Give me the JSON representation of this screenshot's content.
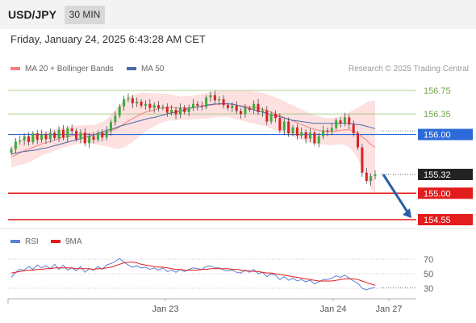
{
  "header": {
    "symbol": "USD/JPY",
    "timeframe": "30 MIN",
    "datetime": "Friday, January 24, 2025 6:43:28 AM CET"
  },
  "legend": {
    "ma20": "MA 20 + Bollinger Bands",
    "ma50": "MA 50",
    "credit": "Research © 2025 Trading Central"
  },
  "rsi_legend": {
    "rsi": "RSI",
    "ma9": "9MA"
  },
  "colors": {
    "up": "#3cab3c",
    "down": "#d92222",
    "ma20": "#f08080",
    "ma50": "#4a6aa8",
    "band": "#fde0e0",
    "support": "#e31c1c",
    "pivot": "#2b6ad8",
    "resist": "#8fc26a",
    "rsi": "#5b7fd6",
    "rsi_ma": "#e31c1c",
    "arrow": "#2a5fa8"
  },
  "chart_data": [
    {
      "type": "candlestick",
      "series_name": "USD/JPY",
      "price_range": [
        154.45,
        156.95
      ],
      "x_labels": [
        "Jan 23",
        "Jan 24",
        "Jan 27"
      ],
      "levels": [
        {
          "value": 156.75,
          "label": "156.75",
          "kind": "resistance"
        },
        {
          "value": 156.35,
          "label": "156.35",
          "kind": "resistance"
        },
        {
          "value": 156.0,
          "label": "156.00",
          "kind": "pivot"
        },
        {
          "value": 155.0,
          "label": "155.00",
          "kind": "support"
        },
        {
          "value": 154.55,
          "label": "154.55",
          "kind": "support"
        }
      ],
      "last_price": {
        "value": 155.32,
        "label": "155.32"
      },
      "forecast_arrow": {
        "from": 155.32,
        "to": 154.55,
        "direction": "down"
      },
      "close": [
        155.75,
        155.88,
        155.9,
        155.97,
        155.87,
        156.02,
        155.91,
        156.0,
        155.92,
        156.03,
        155.94,
        156.08,
        155.95,
        156.1,
        156.06,
        155.92,
        156.03,
        155.85,
        155.97,
        155.91,
        156.03,
        155.95,
        156.06,
        156.21,
        156.32,
        156.48,
        156.6,
        156.62,
        156.53,
        156.56,
        156.49,
        156.52,
        156.45,
        156.5,
        156.45,
        156.47,
        156.37,
        156.42,
        156.34,
        156.46,
        156.38,
        156.45,
        156.52,
        156.49,
        156.47,
        156.63,
        156.67,
        156.58,
        156.6,
        156.5,
        156.45,
        156.49,
        156.4,
        156.35,
        156.45,
        156.42,
        156.52,
        156.38,
        156.41,
        156.22,
        156.35,
        156.28,
        156.07,
        156.22,
        156.02,
        156.12,
        155.98,
        156.04,
        155.93,
        156.03,
        155.85,
        155.97,
        156.07,
        156.05,
        156.11,
        156.24,
        156.19,
        156.29,
        156.17,
        156.02,
        155.78,
        155.35,
        155.21,
        155.29,
        155.32
      ],
      "ma20": [
        155.62,
        155.65,
        155.69,
        155.72,
        155.75,
        155.78,
        155.81,
        155.84,
        155.86,
        155.88,
        155.91,
        155.93,
        155.95,
        155.96,
        155.98,
        155.99,
        156.0,
        156.01,
        156.01,
        156.0,
        156.0,
        156.01,
        156.03,
        156.06,
        156.09,
        156.13,
        156.18,
        156.23,
        156.27,
        156.31,
        156.35,
        156.38,
        156.4,
        156.42,
        156.44,
        156.45,
        156.46,
        156.46,
        156.45,
        156.45,
        156.45,
        156.45,
        156.46,
        156.47,
        156.48,
        156.49,
        156.5,
        156.51,
        156.52,
        156.52,
        156.52,
        156.51,
        156.5,
        156.49,
        156.48,
        156.47,
        156.46,
        156.45,
        156.43,
        156.41,
        156.38,
        156.35,
        156.32,
        156.29,
        156.26,
        156.23,
        156.2,
        156.17,
        156.14,
        156.11,
        156.09,
        156.07,
        156.06,
        156.05,
        156.05,
        156.06,
        156.07,
        156.08,
        156.08,
        156.06,
        156.02,
        155.96,
        155.9,
        155.83,
        155.78
      ],
      "ma50": [
        155.67,
        155.68,
        155.7,
        155.71,
        155.72,
        155.73,
        155.74,
        155.76,
        155.77,
        155.79,
        155.81,
        155.83,
        155.85,
        155.87,
        155.89,
        155.91,
        155.93,
        155.95,
        155.97,
        155.99,
        156.02,
        156.04,
        156.07,
        156.09,
        156.11,
        156.14,
        156.16,
        156.18,
        156.2,
        156.22,
        156.24,
        156.26,
        156.28,
        156.29,
        156.31,
        156.33,
        156.35,
        156.37,
        156.38,
        156.4,
        156.42,
        156.44,
        156.46,
        156.47,
        156.48,
        156.5,
        156.51,
        156.52,
        156.52,
        156.53,
        156.52,
        156.52,
        156.5,
        156.48,
        156.46,
        156.44,
        156.42,
        156.4,
        156.38,
        156.36,
        156.34,
        156.32,
        156.3,
        156.28,
        156.26,
        156.24,
        156.23,
        156.22,
        156.21,
        156.2,
        156.19,
        156.19,
        156.19,
        156.19,
        156.19,
        156.19,
        156.19,
        156.19,
        156.19,
        156.18,
        156.17,
        156.16,
        156.14,
        156.12,
        156.1
      ],
      "bb_width": [
        0.18,
        0.19,
        0.21,
        0.22,
        0.23,
        0.22,
        0.21,
        0.2,
        0.19,
        0.19,
        0.18,
        0.18,
        0.17,
        0.17,
        0.16,
        0.16,
        0.15,
        0.15,
        0.15,
        0.16,
        0.18,
        0.2,
        0.23,
        0.28,
        0.33,
        0.37,
        0.4,
        0.41,
        0.4,
        0.38,
        0.36,
        0.33,
        0.3,
        0.28,
        0.26,
        0.24,
        0.23,
        0.22,
        0.21,
        0.2,
        0.2,
        0.2,
        0.2,
        0.21,
        0.21,
        0.22,
        0.22,
        0.22,
        0.22,
        0.22,
        0.22,
        0.23,
        0.24,
        0.25,
        0.26,
        0.27,
        0.27,
        0.28,
        0.28,
        0.28,
        0.28,
        0.28,
        0.28,
        0.28,
        0.27,
        0.27,
        0.26,
        0.26,
        0.25,
        0.25,
        0.24,
        0.24,
        0.23,
        0.23,
        0.23,
        0.23,
        0.24,
        0.26,
        0.3,
        0.36,
        0.44,
        0.54,
        0.65,
        0.74,
        0.8
      ]
    },
    {
      "type": "line",
      "title": "RSI",
      "y_ticks": [
        70,
        50,
        30
      ],
      "ylim": [
        20,
        80
      ],
      "series": [
        {
          "name": "RSI",
          "values": [
            45,
            52,
            56,
            55,
            60,
            56,
            62,
            58,
            61,
            57,
            63,
            56,
            62,
            55,
            58,
            54,
            60,
            52,
            57,
            55,
            60,
            56,
            62,
            64,
            67,
            71,
            66,
            62,
            59,
            61,
            58,
            59,
            56,
            58,
            55,
            58,
            53,
            55,
            52,
            56,
            53,
            56,
            58,
            57,
            56,
            60,
            61,
            58,
            58,
            55,
            54,
            55,
            52,
            51,
            55,
            52,
            56,
            50,
            52,
            46,
            50,
            48,
            42,
            46,
            41,
            44,
            40,
            42,
            39,
            41,
            36,
            39,
            42,
            42,
            44,
            47,
            45,
            48,
            44,
            40,
            37,
            30,
            28,
            30,
            31
          ]
        },
        {
          "name": "9MA",
          "values": [
            51,
            52,
            53,
            54,
            55,
            55,
            56,
            56,
            57,
            57,
            58,
            58,
            58,
            58,
            58,
            57,
            57,
            57,
            57,
            56,
            57,
            57,
            58,
            59,
            61,
            63,
            65,
            66,
            66,
            65,
            63,
            62,
            61,
            60,
            59,
            59,
            58,
            57,
            56,
            56,
            55,
            55,
            55,
            55,
            56,
            56,
            57,
            57,
            57,
            57,
            57,
            56,
            56,
            55,
            54,
            54,
            53,
            53,
            52,
            51,
            51,
            50,
            49,
            48,
            47,
            46,
            45,
            44,
            43,
            42,
            41,
            40,
            40,
            40,
            40,
            41,
            42,
            43,
            43,
            43,
            42,
            40,
            38,
            36,
            34
          ]
        }
      ]
    }
  ]
}
